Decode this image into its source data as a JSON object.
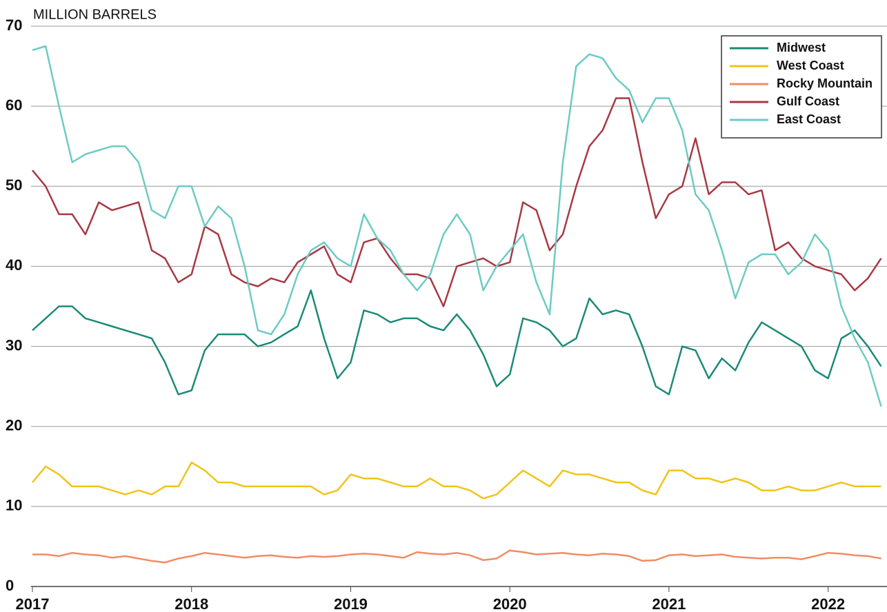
{
  "chart_data": {
    "type": "line",
    "title": "MILLION BARRELS",
    "x": [
      2017,
      2017.083,
      2017.167,
      2017.25,
      2017.333,
      2017.417,
      2017.5,
      2017.583,
      2017.667,
      2017.75,
      2017.833,
      2017.917,
      2018,
      2018.083,
      2018.167,
      2018.25,
      2018.333,
      2018.417,
      2018.5,
      2018.583,
      2018.667,
      2018.75,
      2018.833,
      2018.917,
      2019,
      2019.083,
      2019.167,
      2019.25,
      2019.333,
      2019.417,
      2019.5,
      2019.583,
      2019.667,
      2019.75,
      2019.833,
      2019.917,
      2020,
      2020.083,
      2020.167,
      2020.25,
      2020.333,
      2020.417,
      2020.5,
      2020.583,
      2020.667,
      2020.75,
      2020.833,
      2020.917,
      2021,
      2021.083,
      2021.167,
      2021.25,
      2021.333,
      2021.417,
      2021.5,
      2021.583,
      2021.667,
      2021.75,
      2021.833,
      2021.917,
      2022,
      2022.083,
      2022.167,
      2022.25,
      2022.333
    ],
    "series": [
      {
        "name": "Midwest",
        "color": "#1b8a76",
        "values": [
          32,
          33.5,
          35,
          35,
          33.5,
          33,
          32.5,
          32,
          31.5,
          31,
          28,
          24,
          24.5,
          29.5,
          31.5,
          31.5,
          31.5,
          30,
          30.5,
          31.5,
          32.5,
          37,
          31,
          26,
          28,
          34.5,
          34,
          33,
          33.5,
          33.5,
          32.5,
          32,
          34,
          32,
          29,
          25,
          26.5,
          33.5,
          33,
          32,
          30,
          31,
          36,
          34,
          34.5,
          34,
          30,
          25,
          24,
          30,
          29.5,
          26,
          28.5,
          27,
          30.5,
          33,
          32,
          31,
          30,
          27,
          26,
          31,
          32,
          30,
          27.5
        ]
      },
      {
        "name": "West Coast",
        "color": "#f2c318",
        "values": [
          13,
          15,
          14,
          12.5,
          12.5,
          12.5,
          12,
          11.5,
          12,
          11.5,
          12.5,
          12.5,
          15.5,
          14.5,
          13,
          13,
          12.5,
          12.5,
          12.5,
          12.5,
          12.5,
          12.5,
          11.5,
          12,
          14,
          13.5,
          13.5,
          13,
          12.5,
          12.5,
          13.5,
          12.5,
          12.5,
          12,
          11,
          11.5,
          13,
          14.5,
          13.5,
          12.5,
          14.5,
          14,
          14,
          13.5,
          13,
          13,
          12,
          11.5,
          14.5,
          14.5,
          13.5,
          13.5,
          13,
          13.5,
          13,
          12,
          12,
          12.5,
          12,
          12,
          12.5,
          13,
          12.5,
          12.5,
          12.5
        ]
      },
      {
        "name": "Rocky Mountain",
        "color": "#f08c64",
        "values": [
          4,
          4,
          3.8,
          4.2,
          4,
          3.9,
          3.6,
          3.8,
          3.5,
          3.2,
          3,
          3.5,
          3.8,
          4.2,
          4,
          3.8,
          3.6,
          3.8,
          3.9,
          3.7,
          3.6,
          3.8,
          3.7,
          3.8,
          4,
          4.1,
          4,
          3.8,
          3.6,
          4.3,
          4.1,
          4,
          4.2,
          3.9,
          3.3,
          3.5,
          4.5,
          4.3,
          4,
          4.1,
          4.2,
          4,
          3.9,
          4.1,
          4,
          3.8,
          3.2,
          3.3,
          3.9,
          4,
          3.8,
          3.9,
          4,
          3.7,
          3.6,
          3.5,
          3.6,
          3.6,
          3.4,
          3.8,
          4.2,
          4.1,
          3.9,
          3.8,
          3.5
        ]
      },
      {
        "name": "Gulf Coast",
        "color": "#a83843",
        "values": [
          52,
          50,
          46.5,
          46.5,
          44,
          48,
          47,
          47.5,
          48,
          42,
          41,
          38,
          39,
          45,
          44,
          39,
          38,
          37.5,
          38.5,
          38,
          40.5,
          41.5,
          42.5,
          39,
          38,
          43,
          43.5,
          41,
          39,
          39,
          38.5,
          35,
          40,
          40.5,
          41,
          40,
          40.5,
          48,
          47,
          42,
          44,
          50,
          55,
          57,
          61,
          61,
          53,
          46,
          49,
          50,
          56,
          49,
          50.5,
          50.5,
          49,
          49.5,
          42,
          43,
          41,
          40,
          39.5,
          39,
          37,
          38.5,
          41
        ]
      },
      {
        "name": "East Coast",
        "color": "#6bcbc4",
        "values": [
          67,
          67.5,
          60,
          53,
          54,
          54.5,
          55,
          55,
          53,
          47,
          46,
          50,
          50,
          45,
          47.5,
          46,
          40,
          32,
          31.5,
          34,
          39,
          42,
          43,
          41,
          40,
          46.5,
          43.5,
          42,
          39,
          37,
          39,
          44,
          46.5,
          44,
          37,
          40,
          42,
          44,
          38,
          34,
          53,
          65,
          66.5,
          66,
          63.5,
          62,
          58,
          61,
          61,
          57,
          49,
          47,
          42,
          36,
          40.5,
          41.5,
          41.5,
          39,
          40.5,
          44,
          42,
          35,
          31,
          28,
          22.5
        ]
      }
    ],
    "xlim": [
      2017,
      2022.37
    ],
    "xticks": [
      2017,
      2018,
      2019,
      2020,
      2021,
      2022
    ],
    "ylim": [
      0,
      70
    ],
    "yticks": [
      0,
      10,
      20,
      30,
      40,
      50,
      60,
      70
    ],
    "grid": true,
    "legend": "top-right"
  }
}
